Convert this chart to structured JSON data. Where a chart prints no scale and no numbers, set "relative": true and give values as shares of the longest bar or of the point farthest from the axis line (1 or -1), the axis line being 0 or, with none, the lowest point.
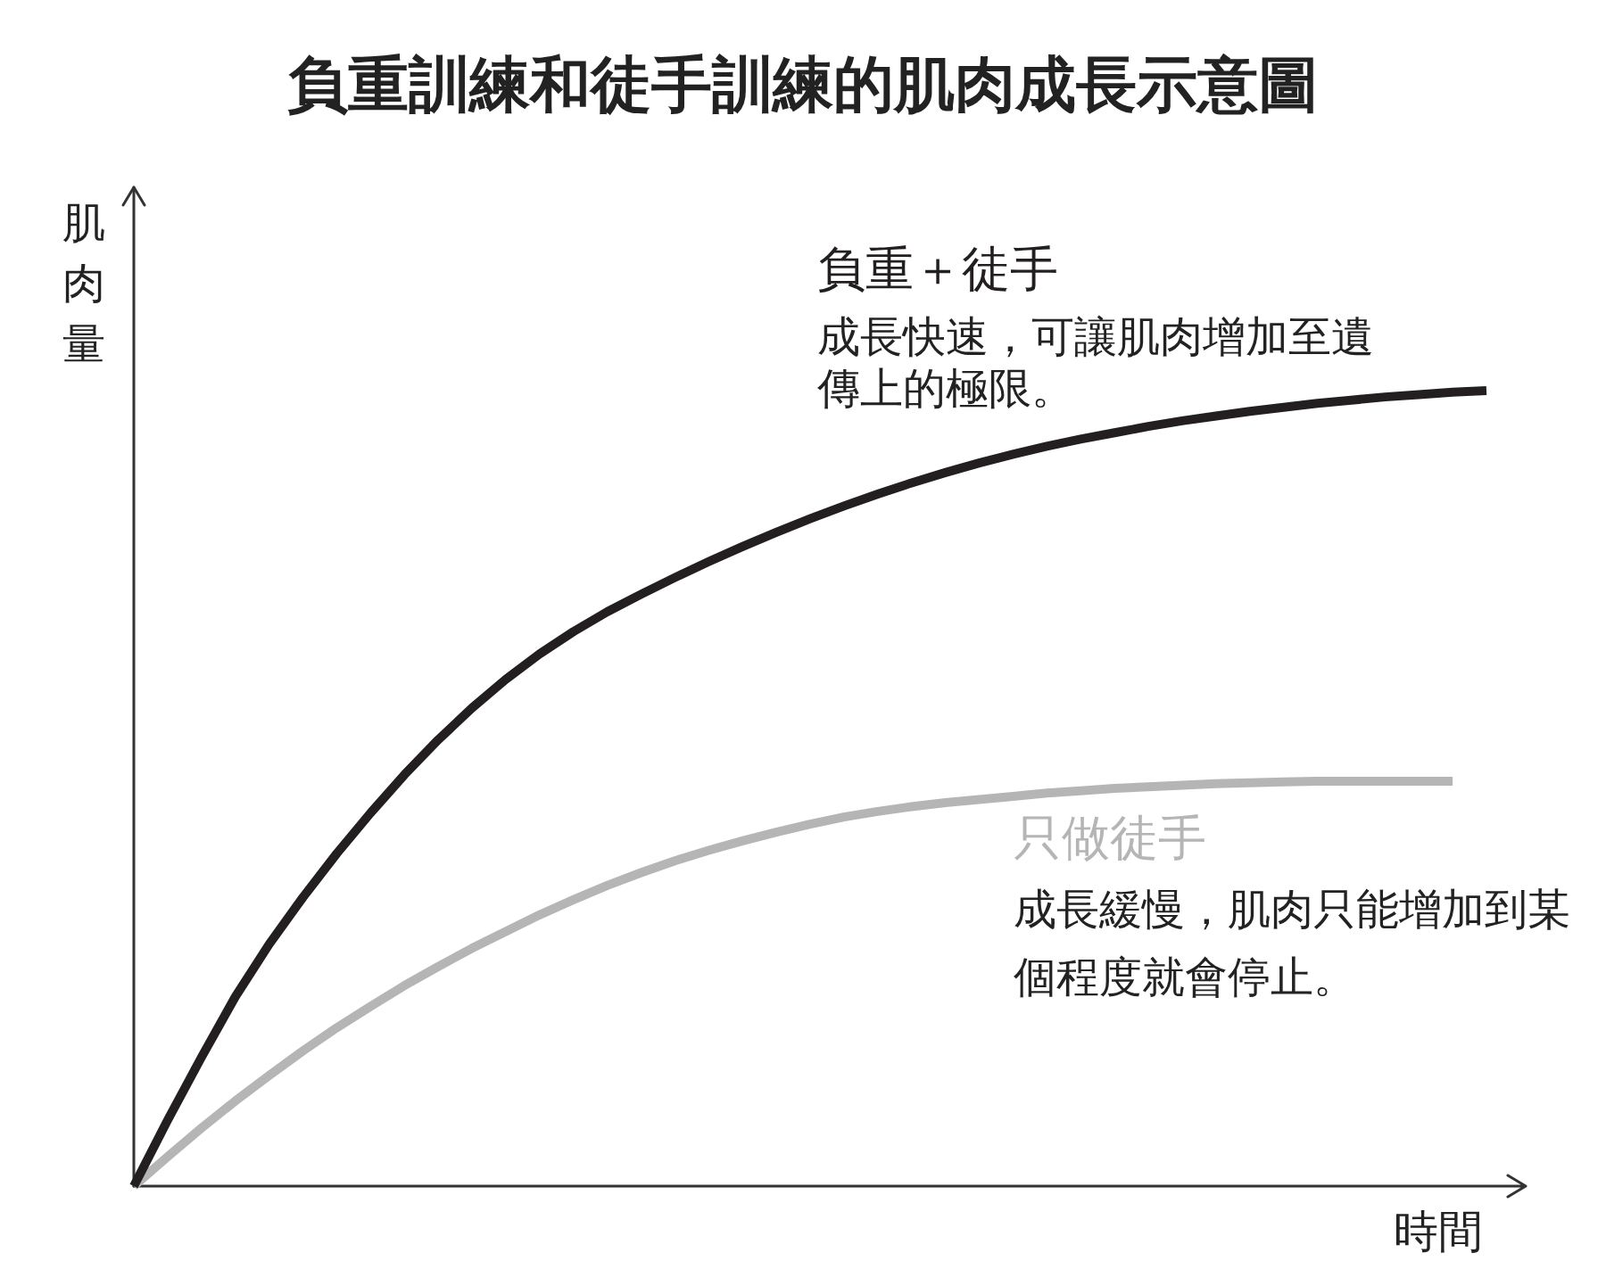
{
  "chart_data": {
    "type": "line",
    "title": "負重訓練和徒手訓練的肌肉成長示意圖",
    "xlabel": "時間",
    "ylabel": "肌肉量",
    "relative": true,
    "categories": [
      null,
      null,
      null,
      null,
      null,
      null,
      null,
      null,
      null,
      null,
      null,
      null,
      null,
      null,
      null,
      null,
      null,
      null,
      null,
      null,
      null,
      null,
      null,
      null,
      null,
      null,
      null,
      null,
      null,
      null,
      null,
      null,
      null,
      null,
      null,
      null,
      null,
      null,
      null,
      null,
      null
    ],
    "series": [
      {
        "name": "負重＋徒手",
        "color": "#231f20",
        "values": [
          0,
          0.083,
          0.162,
          0.238,
          0.304,
          0.363,
          0.418,
          0.469,
          0.517,
          0.561,
          0.601,
          0.637,
          0.669,
          0.697,
          0.722,
          0.744,
          0.765,
          0.785,
          0.804,
          0.822,
          0.839,
          0.855,
          0.87,
          0.884,
          0.897,
          0.909,
          0.92,
          0.93,
          0.939,
          0.947,
          0.955,
          0.962,
          0.968,
          0.974,
          0.979,
          0.984,
          0.988,
          0.992,
          0.995,
          0.998,
          1
        ]
      },
      {
        "name": "只做徒手",
        "color": "#b5b5b5",
        "values": [
          0,
          0.037,
          0.073,
          0.107,
          0.139,
          0.17,
          0.199,
          0.226,
          0.252,
          0.276,
          0.299,
          0.32,
          0.341,
          0.36,
          0.378,
          0.394,
          0.409,
          0.422,
          0.434,
          0.445,
          0.455,
          0.464,
          0.471,
          0.477,
          0.482,
          0.486,
          0.49,
          0.494,
          0.497,
          0.5,
          0.502,
          0.504,
          0.506,
          0.507,
          0.508,
          0.509,
          0.509,
          0.509,
          0.509,
          0.509,
          null
        ]
      }
    ],
    "annotations": [
      "成長快速，可讓肌肉增加至遺傳上的極限。",
      "成長緩慢，肌肉只能增加到某個程度就會停止。"
    ],
    "legend": false,
    "marker": "none"
  }
}
